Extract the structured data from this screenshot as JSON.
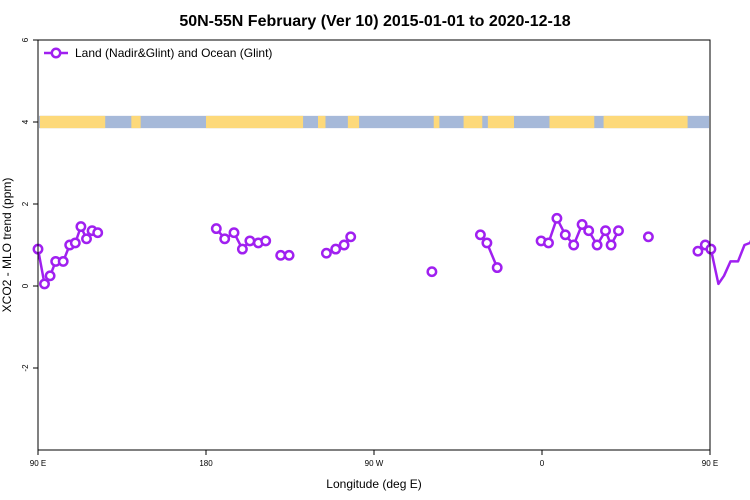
{
  "chart_data": {
    "type": "line",
    "title": "50N-55N February (Ver 10)   2015-01-01 to 2020-12-18",
    "xlabel": "Longitude (deg E)",
    "ylabel": "XCO2 - MLO trend (ppm)",
    "xlim": [
      90,
      450
    ],
    "ylim": [
      -4,
      6
    ],
    "x_ticks": [
      {
        "value": 90,
        "label": "90 E"
      },
      {
        "value": 180,
        "label": "180"
      },
      {
        "value": 270,
        "label": "90 W"
      },
      {
        "value": 360,
        "label": "0"
      },
      {
        "value": 450,
        "label": "90 E"
      },
      {
        "value": 540,
        "label": "180"
      }
    ],
    "y_ticks": [
      {
        "value": -2,
        "label": "-2"
      },
      {
        "value": 0,
        "label": "0"
      },
      {
        "value": 2,
        "label": "2"
      },
      {
        "value": 4,
        "label": "4"
      },
      {
        "value": 6,
        "label": "6"
      }
    ],
    "grid": false,
    "legend_position": "top-left",
    "series": [
      {
        "name": "Land (Nadir&Glint) and Ocean (Glint)",
        "color": "#a020f0",
        "segments": [
          [
            [
              90,
              0.9
            ],
            [
              93.5,
              0.05
            ],
            [
              96.5,
              0.25
            ],
            [
              99.5,
              0.6
            ],
            [
              103.5,
              0.6
            ],
            [
              107,
              1.0
            ],
            [
              110,
              1.05
            ],
            [
              113,
              1.45
            ],
            [
              116,
              1.15
            ],
            [
              119,
              1.35
            ],
            [
              122,
              1.3
            ]
          ],
          [
            [
              185.5,
              1.4
            ],
            [
              190,
              1.15
            ],
            [
              195,
              1.3
            ],
            [
              199.5,
              0.9
            ],
            [
              203.5,
              1.1
            ],
            [
              208,
              1.05
            ],
            [
              212,
              1.1
            ]
          ],
          [
            [
              220,
              0.75
            ],
            [
              224.5,
              0.75
            ]
          ],
          [
            [
              244.5,
              0.8
            ],
            [
              249.5,
              0.9
            ],
            [
              254,
              1.0
            ],
            [
              257.5,
              1.2
            ]
          ],
          [
            [
              301,
              0.35
            ]
          ],
          [
            [
              327,
              1.25
            ],
            [
              330.5,
              1.05
            ],
            [
              336,
              0.45
            ]
          ],
          [
            [
              359.5,
              1.1
            ],
            [
              363.5,
              1.05
            ],
            [
              368,
              1.65
            ],
            [
              372.5,
              1.25
            ],
            [
              377,
              1.0
            ],
            [
              381.5,
              1.5
            ],
            [
              385,
              1.35
            ],
            [
              389.5,
              1.0
            ],
            [
              394,
              1.35
            ],
            [
              397,
              1.0
            ],
            [
              401,
              1.35
            ]
          ],
          [
            [
              417,
              1.2
            ]
          ],
          [
            [
              443.5,
              0.85
            ],
            [
              447.5,
              1.0
            ],
            [
              450.5,
              0.9
            ],
            [
              454.5,
              0.05
            ],
            [
              457.5,
              0.25
            ],
            [
              461,
              0.6
            ],
            [
              465,
              0.6
            ],
            [
              468.5,
              1.0
            ],
            [
              471.5,
              1.05
            ],
            [
              475,
              1.45
            ],
            [
              478.5,
              1.15
            ],
            [
              481.5,
              1.35
            ],
            [
              485,
              1.3
            ]
          ]
        ]
      }
    ],
    "surface_band": {
      "y_range": [
        3.85,
        4.15
      ],
      "ocean_color": "#a6b9d9",
      "land_color": "#fdd97a",
      "land_ranges": [
        [
          91,
          126
        ],
        [
          140,
          145
        ],
        [
          180,
          232
        ],
        [
          240,
          244
        ],
        [
          256,
          262
        ],
        [
          302,
          305
        ],
        [
          318,
          328
        ],
        [
          331,
          345
        ],
        [
          364,
          388
        ],
        [
          393,
          438
        ],
        [
          452,
          487
        ],
        [
          501,
          506
        ]
      ]
    }
  }
}
